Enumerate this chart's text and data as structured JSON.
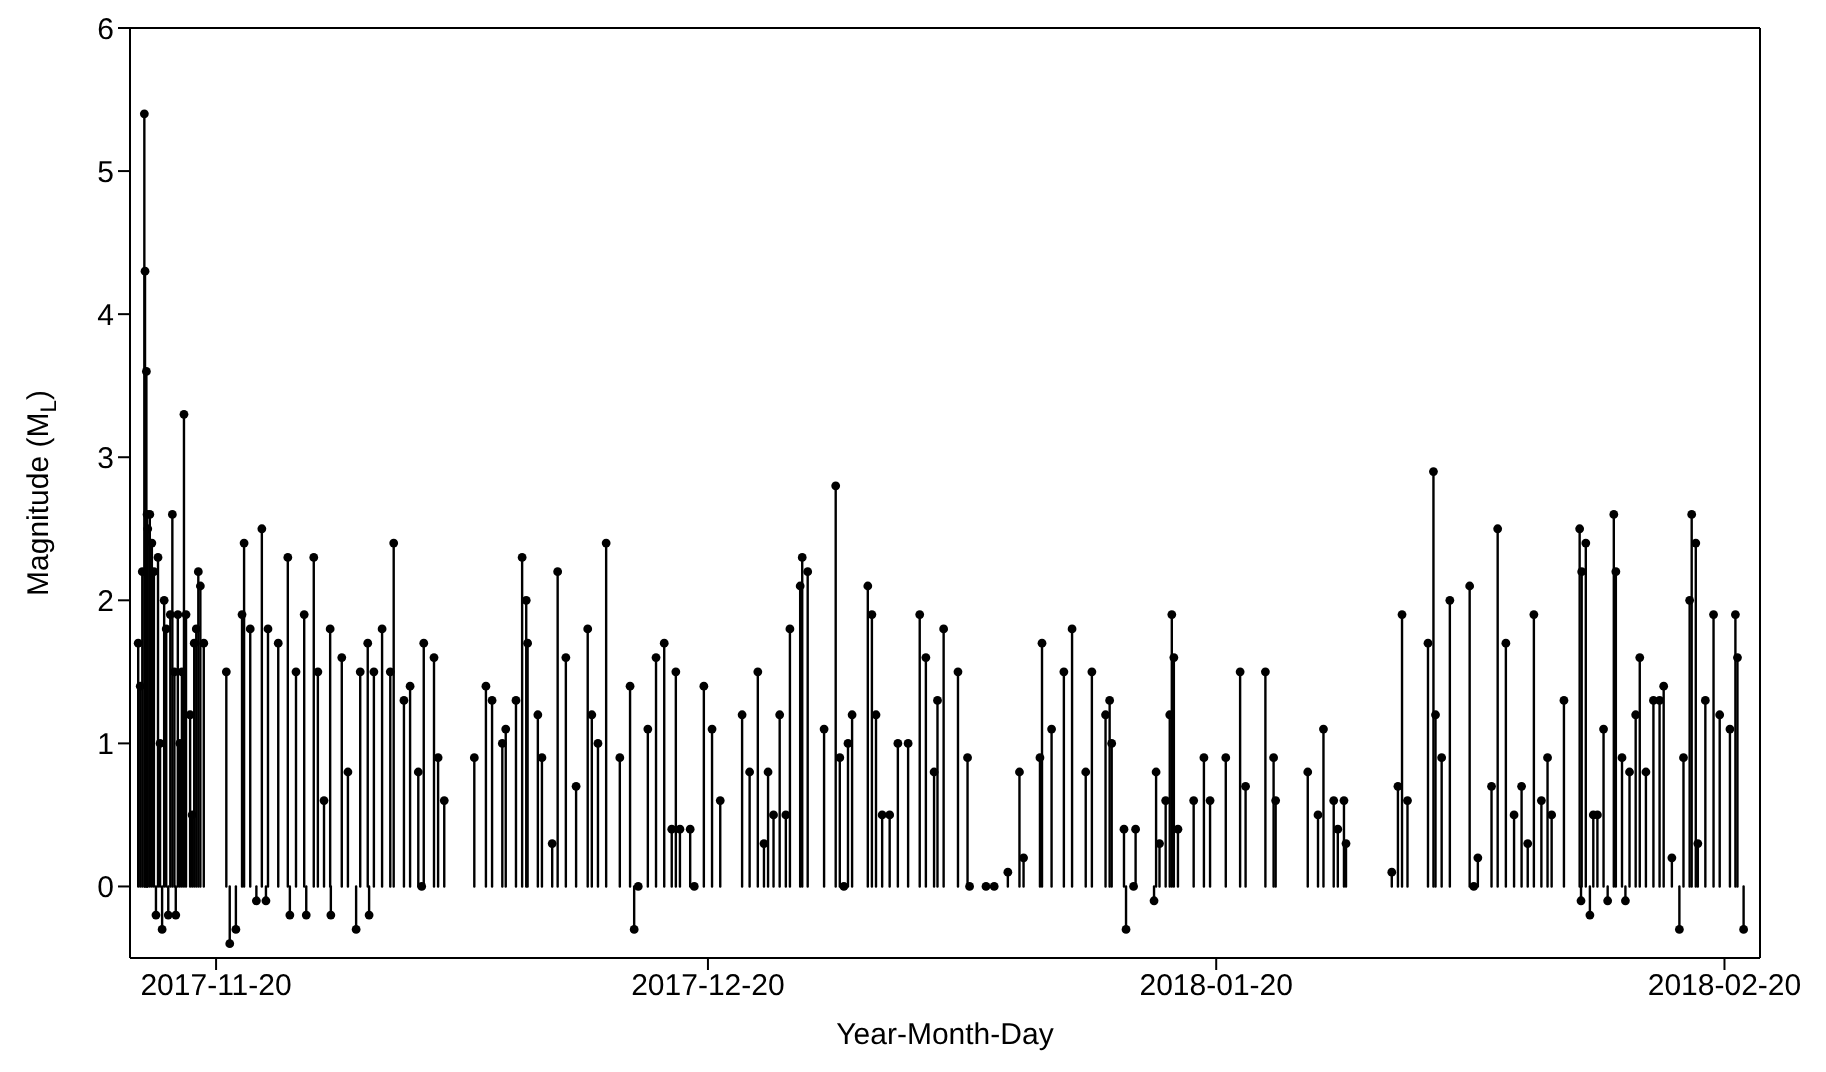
{
  "chart_data": {
    "type": "lollipop",
    "xlabel": "Year-Month-Day",
    "ylabel": "Magnitude (M$_{L}$)",
    "color": "#000000",
    "marker": "circle",
    "line_style": "solid",
    "xlim": [
      "2017-11-14T18:00",
      "2018-02-22T04:00"
    ],
    "xticks": [
      "2017-11-20",
      "2017-12-20",
      "2018-01-20",
      "2018-02-20"
    ],
    "ylim": [
      -0.5,
      6
    ],
    "yticks": [
      0,
      1,
      2,
      3,
      4,
      5,
      6
    ],
    "x": [
      "2017-11-15T06:00",
      "2017-11-15T09:00",
      "2017-11-15T12:00",
      "2017-11-15T15:00",
      "2017-11-15T16:00",
      "2017-11-15T18:00",
      "2017-11-15T19:00",
      "2017-11-15T20:00",
      "2017-11-15T23:00",
      "2017-11-16T02:00",
      "2017-11-16T05:00",
      "2017-11-16T08:00",
      "2017-11-16T11:00",
      "2017-11-16T14:00",
      "2017-11-16T17:00",
      "2017-11-16T20:00",
      "2017-11-16T23:00",
      "2017-11-17T02:00",
      "2017-11-17T05:00",
      "2017-11-17T08:00",
      "2017-11-17T11:00",
      "2017-11-17T13:00",
      "2017-11-17T16:00",
      "2017-11-17T19:00",
      "2017-11-17T22:00",
      "2017-11-18T01:00",
      "2017-11-18T04:00",
      "2017-11-18T10:00",
      "2017-11-18T13:00",
      "2017-11-18T16:00",
      "2017-11-18T19:00",
      "2017-11-18T22:00",
      "2017-11-19T01:00",
      "2017-11-19T06:00",
      "2017-11-20T15:00",
      "2017-11-20T20:00",
      "2017-11-21T05:00",
      "2017-11-21T14:00",
      "2017-11-21T17:00",
      "2017-11-22T02:00",
      "2017-11-22T11:00",
      "2017-11-22T19:00",
      "2017-11-23T01:00",
      "2017-11-23T04:00",
      "2017-11-23T19:00",
      "2017-11-24T09:00",
      "2017-11-24T12:00",
      "2017-11-24T21:00",
      "2017-11-25T09:00",
      "2017-11-25T12:00",
      "2017-11-25T23:00",
      "2017-11-26T05:00",
      "2017-11-26T14:00",
      "2017-11-26T23:00",
      "2017-11-27T00:00",
      "2017-11-27T16:00",
      "2017-11-28T01:00",
      "2017-11-28T13:00",
      "2017-11-28T19:00",
      "2017-11-29T06:00",
      "2017-11-29T08:00",
      "2017-11-29T15:00",
      "2017-11-30T03:00",
      "2017-11-30T15:00",
      "2017-11-30T20:00",
      "2017-12-01T11:00",
      "2017-12-01T20:00",
      "2017-12-02T08:00",
      "2017-12-02T13:00",
      "2017-12-02T16:00",
      "2017-12-03T07:00",
      "2017-12-03T13:00",
      "2017-12-03T22:00",
      "2017-12-05T18:00",
      "2017-12-06T11:00",
      "2017-12-06T20:00",
      "2017-12-07T11:00",
      "2017-12-07T16:00",
      "2017-12-08T07:00",
      "2017-12-08T16:00",
      "2017-12-08T22:00",
      "2017-12-09T00:00",
      "2017-12-09T15:00",
      "2017-12-09T21:00",
      "2017-12-10T12:00",
      "2017-12-10T20:00",
      "2017-12-11T08:00",
      "2017-12-11T23:00",
      "2017-12-12T16:00",
      "2017-12-12T22:00",
      "2017-12-13T07:00",
      "2017-12-13T19:00",
      "2017-12-14T15:00",
      "2017-12-15T06:00",
      "2017-12-15T12:00",
      "2017-12-15T18:00",
      "2017-12-16T08:00",
      "2017-12-16T20:00",
      "2017-12-17T08:00",
      "2017-12-17T19:00",
      "2017-12-18T01:00",
      "2017-12-18T07:00",
      "2017-12-18T22:00",
      "2017-12-19T04:00",
      "2017-12-19T18:00",
      "2017-12-20T06:00",
      "2017-12-20T18:00",
      "2017-12-22T02:00",
      "2017-12-22T13:00",
      "2017-12-23T01:00",
      "2017-12-23T10:00",
      "2017-12-23T16:00",
      "2017-12-24T00:00",
      "2017-12-24T09:00",
      "2017-12-24T18:00",
      "2017-12-25T00:00",
      "2017-12-25T15:00",
      "2017-12-25T18:00",
      "2017-12-26T02:00",
      "2017-12-27T02:00",
      "2017-12-27T19:00",
      "2017-12-28T01:00",
      "2017-12-28T07:00",
      "2017-12-28T13:00",
      "2017-12-28T19:00",
      "2017-12-29T18:00",
      "2017-12-30T00:00",
      "2017-12-30T06:00",
      "2017-12-30T15:00",
      "2017-12-31T02:00",
      "2017-12-31T14:00",
      "2018-01-01T05:00",
      "2018-01-01T22:00",
      "2018-01-02T07:00",
      "2018-01-02T19:00",
      "2018-01-03T00:00",
      "2018-01-03T09:00",
      "2018-01-04T06:00",
      "2018-01-04T20:00",
      "2018-01-04T23:00",
      "2018-01-05T23:00",
      "2018-01-06T11:00",
      "2018-01-07T07:00",
      "2018-01-08T00:00",
      "2018-01-08T06:00",
      "2018-01-09T06:00",
      "2018-01-09T09:00",
      "2018-01-09T23:00",
      "2018-01-10T17:00",
      "2018-01-11T05:00",
      "2018-01-12T01:00",
      "2018-01-12T10:00",
      "2018-01-13T06:00",
      "2018-01-13T12:00",
      "2018-01-13T15:00",
      "2018-01-14T09:00",
      "2018-01-14T12:00",
      "2018-01-14T23:00",
      "2018-01-15T02:00",
      "2018-01-16T05:00",
      "2018-01-16T08:00",
      "2018-01-16T13:00",
      "2018-01-16T22:00",
      "2018-01-17T04:00",
      "2018-01-17T07:00",
      "2018-01-17T10:00",
      "2018-01-17T16:00",
      "2018-01-18T15:00",
      "2018-01-19T06:00",
      "2018-01-19T15:00",
      "2018-01-20T14:00",
      "2018-01-21T11:00",
      "2018-01-21T19:00",
      "2018-01-23T00:00",
      "2018-01-23T12:00",
      "2018-01-23T15:00",
      "2018-01-25T14:00",
      "2018-01-26T05:00",
      "2018-01-26T13:00",
      "2018-01-27T04:00",
      "2018-01-27T10:00",
      "2018-01-27T19:00",
      "2018-01-27T22:00",
      "2018-01-30T17:00",
      "2018-01-31T02:00",
      "2018-01-31T08:00",
      "2018-01-31T16:00",
      "2018-02-01T22:00",
      "2018-02-02T06:00",
      "2018-02-02T09:00",
      "2018-02-02T18:00",
      "2018-02-03T06:00",
      "2018-02-04T11:00",
      "2018-02-04T17:00",
      "2018-02-04T23:00",
      "2018-02-05T19:00",
      "2018-02-06T04:00",
      "2018-02-06T16:00",
      "2018-02-07T04:00",
      "2018-02-07T15:00",
      "2018-02-08T00:00",
      "2018-02-08T09:00",
      "2018-02-08T20:00",
      "2018-02-09T05:00",
      "2018-02-09T11:00",
      "2018-02-10T05:00",
      "2018-02-11T04:00",
      "2018-02-11T06:00",
      "2018-02-11T07:00",
      "2018-02-11T13:00",
      "2018-02-11T19:00",
      "2018-02-12T00:00",
      "2018-02-12T06:00",
      "2018-02-12T15:00",
      "2018-02-12T21:00",
      "2018-02-13T06:00",
      "2018-02-13T09:00",
      "2018-02-13T18:00",
      "2018-02-13T23:00",
      "2018-02-14T05:00",
      "2018-02-14T14:00",
      "2018-02-14T20:00",
      "2018-02-15T05:00",
      "2018-02-15T16:00",
      "2018-02-16T01:00",
      "2018-02-16T07:00",
      "2018-02-16T19:00",
      "2018-02-17T06:00",
      "2018-02-17T12:00",
      "2018-02-17T21:00",
      "2018-02-18T00:00",
      "2018-02-18T06:00",
      "2018-02-18T09:00",
      "2018-02-18T20:00",
      "2018-02-19T08:00",
      "2018-02-19T17:00",
      "2018-02-20T08:00",
      "2018-02-20T16:00",
      "2018-02-20T19:00",
      "2018-02-21T04:00"
    ],
    "values": [
      1.7,
      1.4,
      2.2,
      5.4,
      4.3,
      3.6,
      2.6,
      2.5,
      2.6,
      2.4,
      2.2,
      -0.2,
      2.3,
      1.0,
      -0.3,
      2.0,
      1.8,
      -0.2,
      1.9,
      2.6,
      1.5,
      -0.2,
      1.9,
      1.0,
      1.5,
      3.3,
      1.9,
      1.2,
      0.5,
      1.7,
      1.8,
      2.2,
      2.1,
      1.7,
      1.5,
      -0.4,
      -0.3,
      1.9,
      2.4,
      1.8,
      -0.1,
      2.5,
      -0.1,
      1.8,
      1.7,
      2.3,
      -0.2,
      1.5,
      1.9,
      -0.2,
      2.3,
      1.5,
      0.6,
      1.8,
      -0.2,
      1.6,
      0.8,
      -0.3,
      1.5,
      1.7,
      -0.2,
      1.5,
      1.8,
      1.5,
      2.4,
      1.3,
      1.4,
      0.8,
      0.0,
      1.7,
      1.6,
      0.9,
      0.6,
      0.9,
      1.4,
      1.3,
      1.0,
      1.1,
      1.3,
      2.3,
      2.0,
      1.7,
      1.2,
      0.9,
      0.3,
      2.2,
      1.6,
      0.7,
      1.8,
      1.2,
      1.0,
      2.4,
      0.9,
      1.4,
      -0.3,
      0.0,
      1.1,
      1.6,
      1.7,
      0.4,
      1.5,
      0.4,
      0.4,
      0.0,
      1.4,
      1.1,
      0.6,
      1.2,
      0.8,
      1.5,
      0.3,
      0.8,
      0.5,
      1.2,
      0.5,
      1.8,
      2.1,
      2.3,
      2.2,
      1.1,
      2.8,
      0.9,
      0.0,
      1.0,
      1.2,
      2.1,
      1.9,
      1.2,
      0.5,
      0.5,
      1.0,
      1.0,
      1.9,
      1.6,
      0.8,
      1.3,
      1.8,
      1.5,
      0.9,
      0.0,
      0.0,
      0.0,
      0.1,
      0.8,
      0.2,
      0.9,
      1.7,
      1.1,
      1.5,
      1.8,
      0.8,
      1.5,
      1.2,
      1.3,
      1.0,
      0.4,
      -0.3,
      0.0,
      0.4,
      -0.1,
      0.8,
      0.3,
      0.6,
      1.2,
      1.9,
      1.6,
      0.4,
      0.6,
      0.9,
      0.6,
      0.9,
      1.5,
      0.7,
      1.5,
      0.9,
      0.6,
      0.8,
      0.5,
      1.1,
      0.6,
      0.4,
      0.6,
      0.3,
      0.1,
      0.7,
      1.9,
      0.6,
      1.7,
      2.9,
      1.2,
      0.9,
      2.0,
      2.1,
      0.0,
      0.2,
      0.7,
      2.5,
      1.7,
      0.5,
      0.7,
      0.3,
      1.9,
      0.6,
      0.9,
      0.5,
      1.3,
      2.5,
      -0.1,
      2.2,
      2.4,
      -0.2,
      0.5,
      0.5,
      1.1,
      -0.1,
      2.6,
      2.2,
      0.9,
      -0.1,
      0.8,
      1.2,
      1.6,
      0.8,
      1.3,
      1.3,
      1.4,
      0.2,
      -0.3,
      0.9,
      2.0,
      2.6,
      2.4,
      0.3,
      1.3,
      1.9,
      1.2,
      1.1,
      1.9,
      1.6,
      -0.3
    ]
  }
}
